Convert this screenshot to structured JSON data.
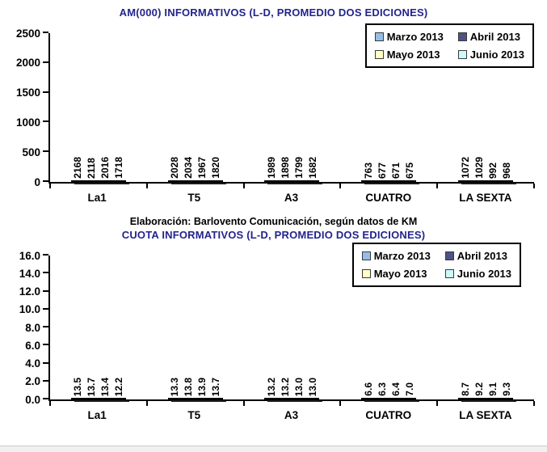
{
  "page": {
    "source_note": "Elaboración: Barlovento Comunicación, según datos de KM"
  },
  "colors": {
    "title_navy": "#23238E",
    "axis": "#000000",
    "bar_shadow": "#1b1b1b",
    "series": {
      "marzo": "#94BEEA",
      "abril": "#4F5189",
      "mayo": "#FFFFC6",
      "junio": "#CCF9FA"
    }
  },
  "chart_data": [
    {
      "type": "bar",
      "title": "AM(000) INFORMATIVOS (L-D, PROMEDIO DOS EDICIONES)",
      "categories": [
        "La1",
        "T5",
        "A3",
        "CUATRO",
        "LA SEXTA"
      ],
      "series": [
        {
          "name": "Marzo 2013",
          "color": "#94BEEA",
          "values": [
            2168,
            2028,
            1989,
            763,
            1072
          ]
        },
        {
          "name": "Abril 2013",
          "color": "#4F5189",
          "values": [
            2118,
            2034,
            1898,
            677,
            1029
          ]
        },
        {
          "name": "Mayo 2013",
          "color": "#FFFFC6",
          "values": [
            2016,
            1967,
            1799,
            671,
            992
          ]
        },
        {
          "name": "Junio 2013",
          "color": "#CCF9FA",
          "values": [
            1718,
            1820,
            1682,
            675,
            968
          ]
        }
      ],
      "ylim": [
        0,
        2500
      ],
      "ytick_step": 500,
      "ytick_decimals": 0,
      "value_label_decimals": 0,
      "legend_position": "top-right",
      "grid": false
    },
    {
      "type": "bar",
      "title": "CUOTA INFORMATIVOS (L-D, PROMEDIO DOS EDICIONES)",
      "categories": [
        "La1",
        "T5",
        "A3",
        "CUATRO",
        "LA SEXTA"
      ],
      "series": [
        {
          "name": "Marzo 2013",
          "color": "#94BEEA",
          "values": [
            13.5,
            13.3,
            13.2,
            6.6,
            8.7
          ]
        },
        {
          "name": "Abril 2013",
          "color": "#4F5189",
          "values": [
            13.7,
            13.8,
            13.2,
            6.3,
            9.2
          ]
        },
        {
          "name": "Mayo 2013",
          "color": "#FFFFC6",
          "values": [
            13.4,
            13.9,
            13.0,
            6.4,
            9.1
          ]
        },
        {
          "name": "Junio 2013",
          "color": "#CCF9FA",
          "values": [
            12.2,
            13.7,
            13.0,
            7.0,
            9.3
          ]
        }
      ],
      "ylim": [
        0,
        16
      ],
      "ytick_step": 2,
      "ytick_decimals": 1,
      "value_label_decimals": 1,
      "legend_position": "top-right",
      "grid": false
    }
  ]
}
